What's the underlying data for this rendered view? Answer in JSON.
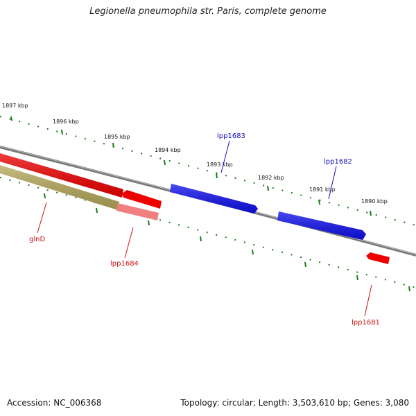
{
  "title": "Legionella pneumophila str. Paris, complete genome",
  "accession": "Accession: NC_006368",
  "summary": "Topology: circular; Length: 3,503,610 bp; Genes: 3,080",
  "colors": {
    "backbone": "#7a7a7a",
    "ticks": "#1a7a1a",
    "forward_gene": "#1010ee",
    "reverse_gene": "#ee0000",
    "reverse_gene_light": "#f08080",
    "operon_region": "#b5a85a",
    "forward_label": "#1010bb",
    "reverse_label": "#cc1111"
  },
  "scale": {
    "tick_labels": [
      "1897 kbp",
      "1896 kbp",
      "1895 kbp",
      "1894 kbp",
      "1893 kbp",
      "1892 kbp",
      "1891 kbp",
      "1890 kbp"
    ]
  },
  "genes": [
    {
      "label": "lpp1683",
      "strand": "forward"
    },
    {
      "label": "lpp1682",
      "strand": "forward"
    },
    {
      "label": "glnD",
      "strand": "reverse"
    },
    {
      "label": "lpp1684",
      "strand": "reverse"
    },
    {
      "label": "lpp1681",
      "strand": "reverse"
    }
  ]
}
